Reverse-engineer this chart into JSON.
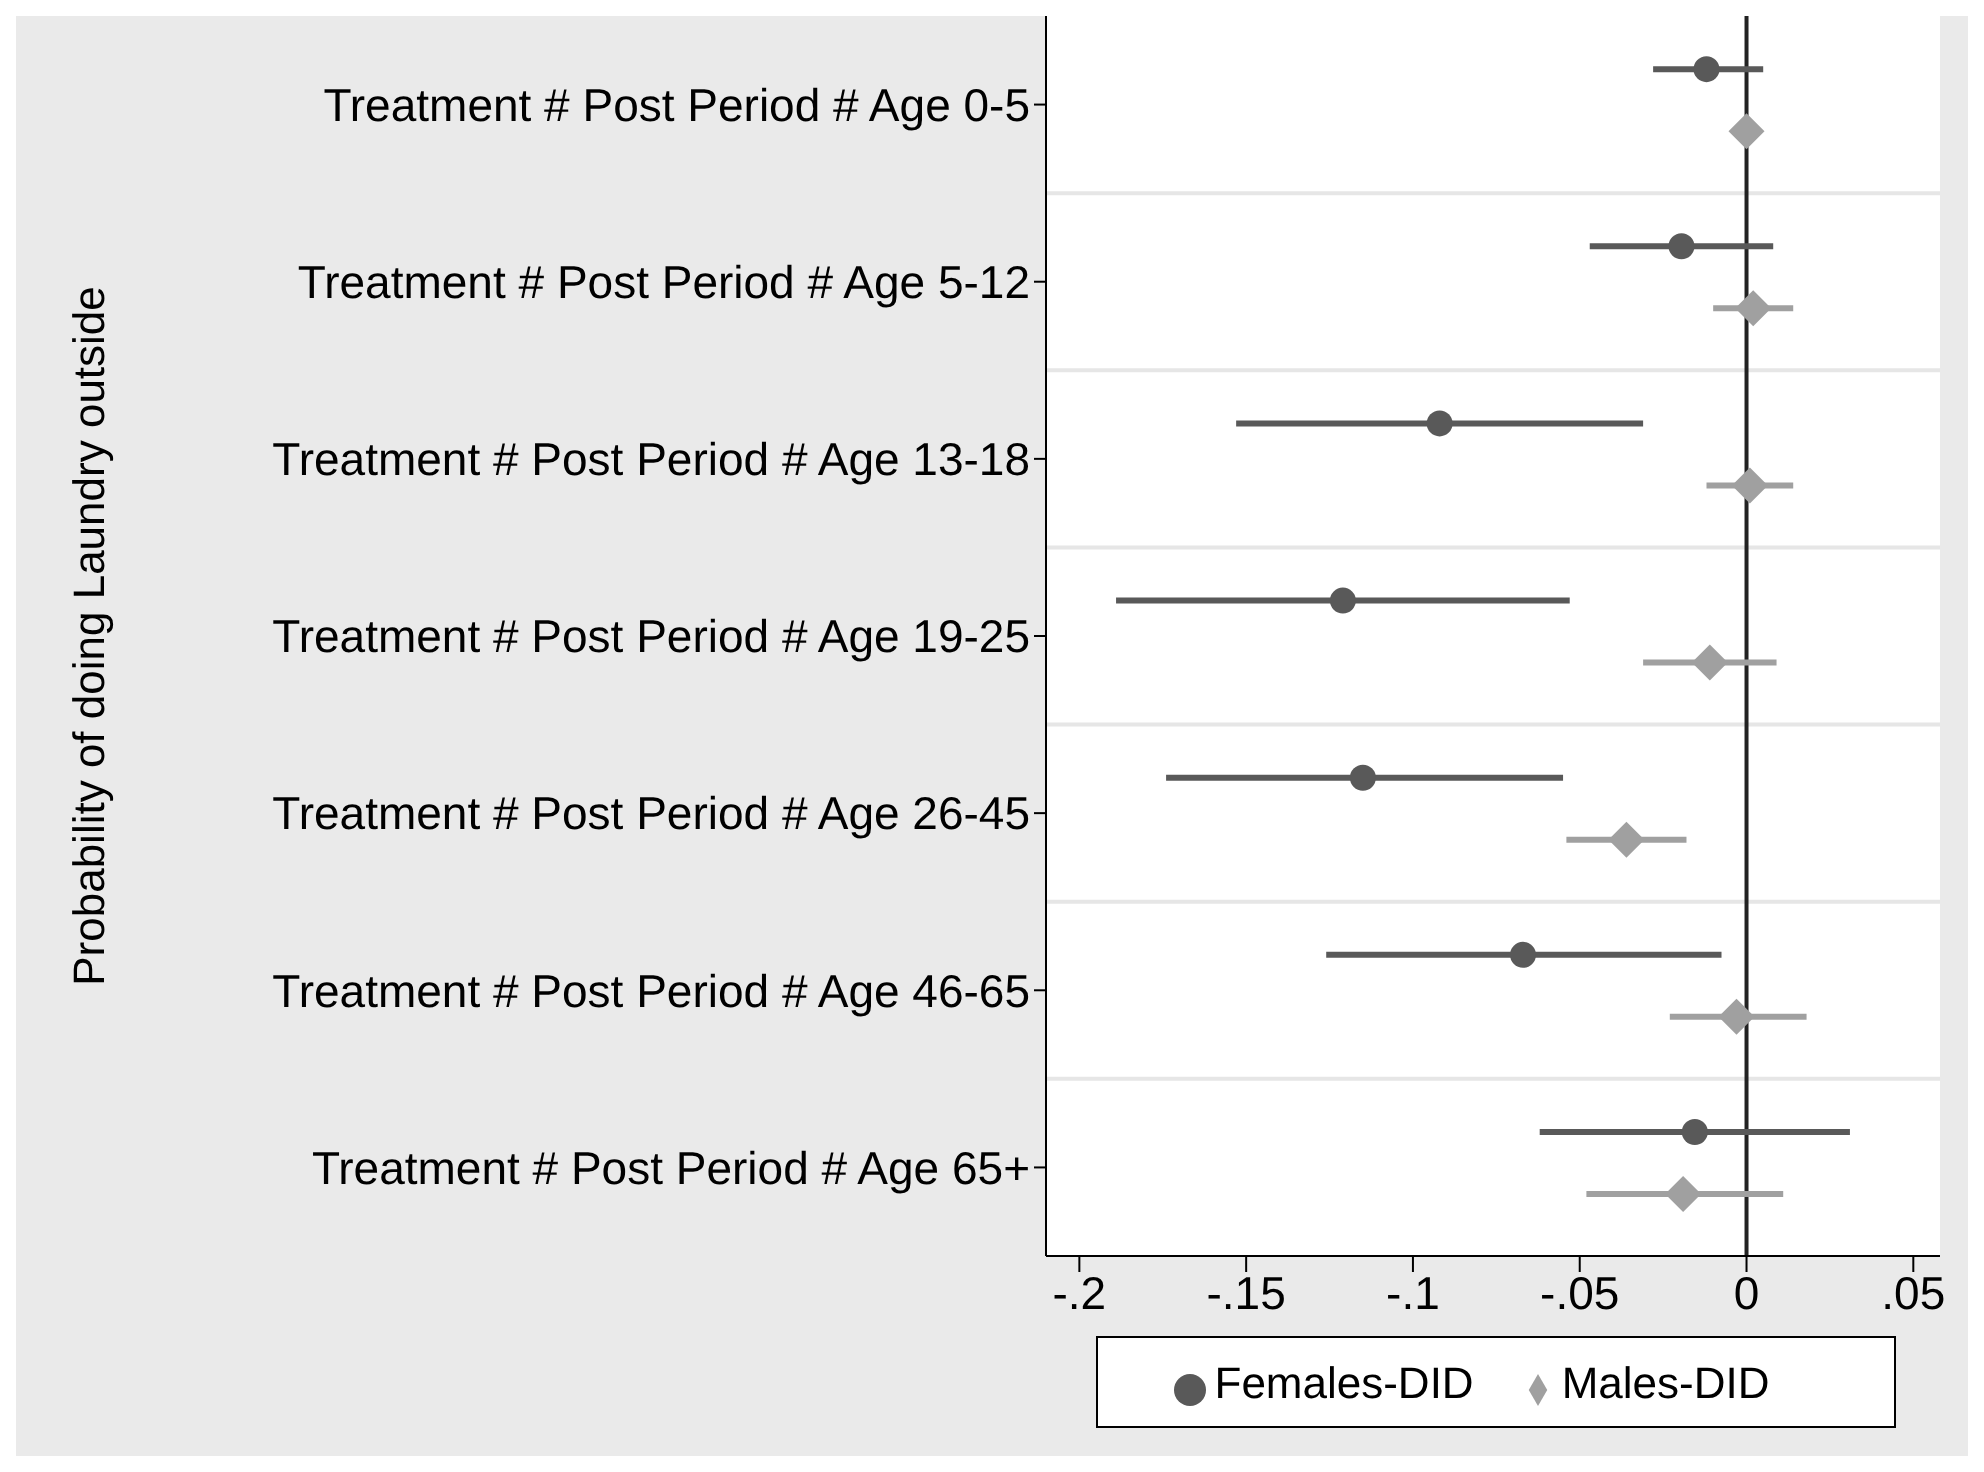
{
  "chart_data": {
    "type": "scatter",
    "orientation": "horizontal",
    "ylabel": "Probability of doing Laundry outside",
    "categories": [
      "Treatment # Post Period # Age 0-5",
      "Treatment # Post Period # Age 5-12",
      "Treatment # Post Period # Age 13-18",
      "Treatment # Post Period # Age 19-25",
      "Treatment # Post Period # Age 26-45",
      "Treatment # Post Period # Age 46-65",
      "Treatment # Post Period # Age 65+"
    ],
    "series": [
      {
        "name": "Females-DID",
        "color": "#595959",
        "marker": "circle",
        "values": [
          -0.012,
          -0.0195,
          -0.092,
          -0.121,
          -0.115,
          -0.067,
          -0.0155
        ],
        "errors": [
          [
            -0.028,
            0.005
          ],
          [
            -0.047,
            0.008
          ],
          [
            -0.153,
            -0.031
          ],
          [
            -0.189,
            -0.053
          ],
          [
            -0.174,
            -0.055
          ],
          [
            -0.126,
            -0.0075
          ],
          [
            -0.062,
            0.031
          ]
        ]
      },
      {
        "name": "Males-DID",
        "color": "#a0a0a0",
        "marker": "diamond",
        "values": [
          0.0,
          0.002,
          0.001,
          -0.011,
          -0.036,
          -0.003,
          -0.019
        ],
        "errors": [
          null,
          [
            -0.01,
            0.014
          ],
          [
            -0.012,
            0.014
          ],
          [
            -0.031,
            0.009
          ],
          [
            -0.054,
            -0.018
          ],
          [
            -0.023,
            0.018
          ],
          [
            -0.048,
            0.011
          ]
        ]
      }
    ],
    "xlim": [
      -0.21,
      0.058
    ],
    "xticks": [
      {
        "value": -0.2,
        "label": "-.2"
      },
      {
        "value": -0.15,
        "label": "-.15"
      },
      {
        "value": -0.1,
        "label": "-.1"
      },
      {
        "value": -0.05,
        "label": "-.05"
      },
      0,
      {
        "value": 0.05,
        "label": ".05"
      }
    ],
    "ref_lines": [
      {
        "axis": "x",
        "value": 0,
        "color": "#222222"
      }
    ],
    "legend": "bottom"
  }
}
